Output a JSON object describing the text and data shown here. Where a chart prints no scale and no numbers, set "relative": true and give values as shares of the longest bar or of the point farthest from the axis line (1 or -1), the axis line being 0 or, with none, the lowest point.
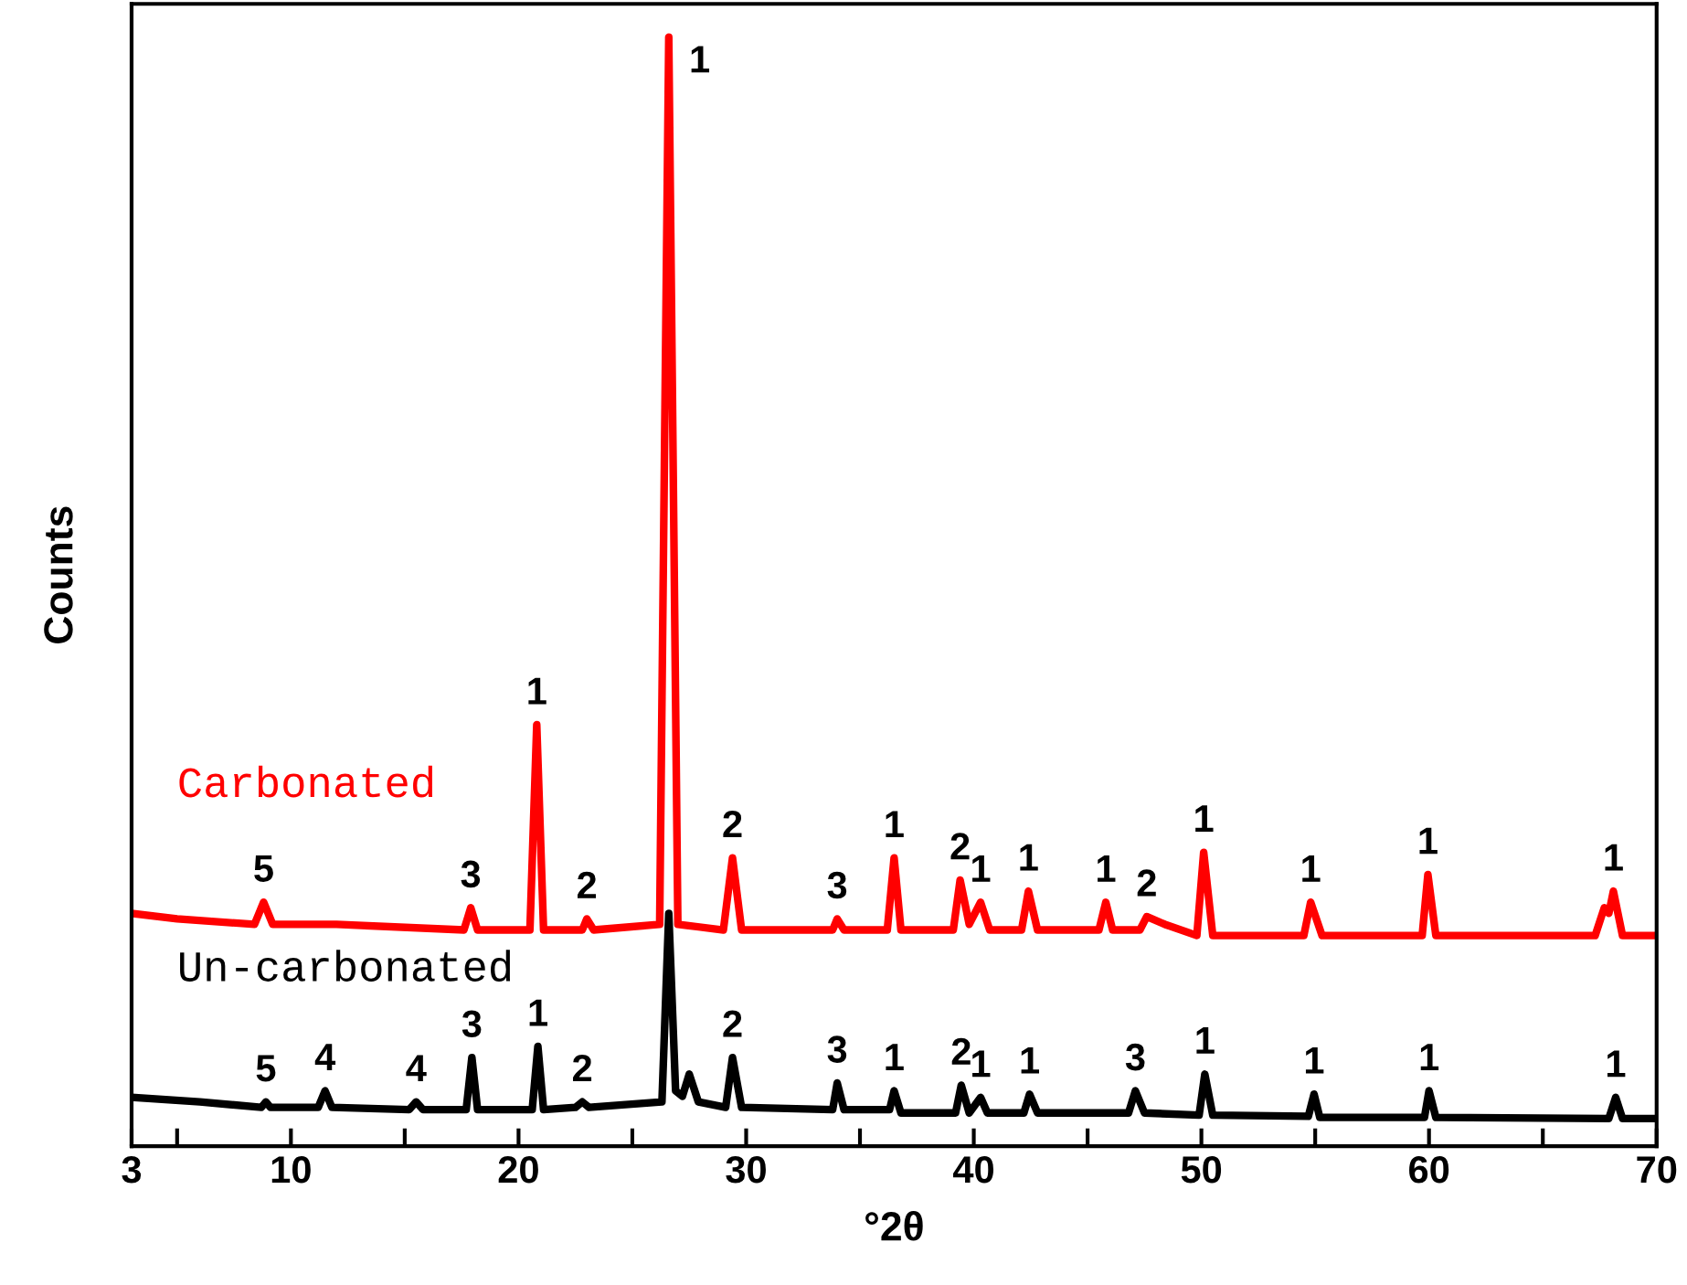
{
  "chart_data": {
    "type": "line",
    "relative": true,
    "xlabel": "°2θ",
    "ylabel": "Counts",
    "xlim": [
      3,
      70
    ],
    "xticks": [
      3,
      {
        "value": 5,
        "label": null
      },
      10,
      {
        "value": 15,
        "label": null
      },
      20,
      {
        "value": 25,
        "label": null
      },
      30,
      {
        "value": 35,
        "label": null
      },
      40,
      {
        "value": 45,
        "label": null
      },
      50,
      {
        "value": 55,
        "label": null
      },
      60,
      {
        "value": 65,
        "label": null
      },
      70
    ],
    "tick_labels": "x",
    "grid": false,
    "legend": false,
    "marker": "none",
    "line_style": "solid",
    "series": [
      {
        "name": "Carbonated",
        "color": "#ff0000",
        "x": [
          3,
          5,
          8.4,
          8.8,
          9.2,
          12,
          17.6,
          17.9,
          18.2,
          20.5,
          20.8,
          21.1,
          22.8,
          23.0,
          23.3,
          26.2,
          26.6,
          27.0,
          29.0,
          29.4,
          29.8,
          33.8,
          34.0,
          34.3,
          36.2,
          36.5,
          36.8,
          39.1,
          39.4,
          39.8,
          40.3,
          40.7,
          42.1,
          42.4,
          42.8,
          45.5,
          45.8,
          46.1,
          47.3,
          47.6,
          48.4,
          49.8,
          50.1,
          50.5,
          54.5,
          54.8,
          55.3,
          59.7,
          59.95,
          60.3,
          67.3,
          67.7,
          67.9,
          68.1,
          68.5,
          70
        ],
        "values": [
          0.21,
          0.205,
          0.2,
          0.22,
          0.2,
          0.2,
          0.195,
          0.215,
          0.195,
          0.195,
          0.38,
          0.195,
          0.195,
          0.205,
          0.195,
          0.2,
          1.0,
          0.2,
          0.195,
          0.26,
          0.195,
          0.195,
          0.205,
          0.195,
          0.195,
          0.26,
          0.195,
          0.195,
          0.24,
          0.2,
          0.22,
          0.195,
          0.195,
          0.23,
          0.195,
          0.195,
          0.22,
          0.195,
          0.195,
          0.207,
          0.2,
          0.19,
          0.265,
          0.19,
          0.19,
          0.22,
          0.19,
          0.19,
          0.245,
          0.19,
          0.19,
          0.215,
          0.21,
          0.23,
          0.19,
          0.19
        ]
      },
      {
        "name": "Un-carbonated",
        "color": "#000000",
        "x": [
          3,
          6,
          8.7,
          8.9,
          9.1,
          11.2,
          11.5,
          11.8,
          15.2,
          15.5,
          15.8,
          17.7,
          17.95,
          18.2,
          20.6,
          20.85,
          21.1,
          22.5,
          22.8,
          23.1,
          26.3,
          26.6,
          26.9,
          27.2,
          27.5,
          27.9,
          29.1,
          29.4,
          29.8,
          33.8,
          34.0,
          34.3,
          36.3,
          36.5,
          36.8,
          39.2,
          39.45,
          39.8,
          40.3,
          40.6,
          42.2,
          42.45,
          42.8,
          46.8,
          47.1,
          47.5,
          49.9,
          50.15,
          50.5,
          54.7,
          54.95,
          55.2,
          59.8,
          60.0,
          60.3,
          67.9,
          68.2,
          68.5,
          70
        ],
        "values": [
          0.044,
          0.04,
          0.035,
          0.04,
          0.035,
          0.035,
          0.05,
          0.035,
          0.033,
          0.04,
          0.033,
          0.033,
          0.08,
          0.033,
          0.033,
          0.09,
          0.033,
          0.035,
          0.04,
          0.035,
          0.04,
          0.21,
          0.05,
          0.045,
          0.065,
          0.04,
          0.035,
          0.08,
          0.035,
          0.033,
          0.057,
          0.033,
          0.033,
          0.05,
          0.03,
          0.03,
          0.055,
          0.03,
          0.044,
          0.03,
          0.03,
          0.047,
          0.03,
          0.03,
          0.05,
          0.03,
          0.028,
          0.065,
          0.028,
          0.027,
          0.047,
          0.026,
          0.026,
          0.05,
          0.026,
          0.025,
          0.044,
          0.025,
          0.025
        ]
      }
    ],
    "annotations": [
      {
        "text": "5",
        "x": 8.8,
        "y": 0.22
      },
      {
        "text": "3",
        "x": 17.9,
        "y": 0.215
      },
      {
        "text": "1",
        "x": 20.8,
        "y": 0.38
      },
      {
        "text": "2",
        "x": 23.0,
        "y": 0.205
      },
      {
        "text": "1",
        "x": 26.6,
        "y": 1.0
      },
      {
        "text": "2",
        "x": 29.4,
        "y": 0.26
      },
      {
        "text": "3",
        "x": 34.0,
        "y": 0.205
      },
      {
        "text": "1",
        "x": 36.5,
        "y": 0.26
      },
      {
        "text": "2",
        "x": 39.4,
        "y": 0.24
      },
      {
        "text": "1",
        "x": 40.3,
        "y": 0.22
      },
      {
        "text": "1",
        "x": 42.4,
        "y": 0.23
      },
      {
        "text": "1",
        "x": 45.8,
        "y": 0.22
      },
      {
        "text": "2",
        "x": 47.6,
        "y": 0.207
      },
      {
        "text": "1",
        "x": 50.1,
        "y": 0.265
      },
      {
        "text": "1",
        "x": 54.8,
        "y": 0.22
      },
      {
        "text": "1",
        "x": 59.95,
        "y": 0.245
      },
      {
        "text": "1",
        "x": 68.1,
        "y": 0.23
      },
      {
        "text": "5",
        "x": 8.9,
        "y": 0.04
      },
      {
        "text": "4",
        "x": 11.5,
        "y": 0.05
      },
      {
        "text": "4",
        "x": 15.5,
        "y": 0.04
      },
      {
        "text": "3",
        "x": 17.95,
        "y": 0.08
      },
      {
        "text": "1",
        "x": 20.85,
        "y": 0.09
      },
      {
        "text": "2",
        "x": 22.8,
        "y": 0.04
      },
      {
        "text": "2",
        "x": 29.4,
        "y": 0.08
      },
      {
        "text": "3",
        "x": 34.0,
        "y": 0.057
      },
      {
        "text": "1",
        "x": 36.5,
        "y": 0.05
      },
      {
        "text": "2",
        "x": 39.45,
        "y": 0.055
      },
      {
        "text": "1",
        "x": 40.3,
        "y": 0.044
      },
      {
        "text": "1",
        "x": 42.45,
        "y": 0.047
      },
      {
        "text": "3",
        "x": 47.1,
        "y": 0.05
      },
      {
        "text": "1",
        "x": 50.15,
        "y": 0.065
      },
      {
        "text": "1",
        "x": 54.95,
        "y": 0.047
      },
      {
        "text": "1",
        "x": 60.0,
        "y": 0.05
      },
      {
        "text": "1",
        "x": 68.2,
        "y": 0.044
      }
    ]
  }
}
